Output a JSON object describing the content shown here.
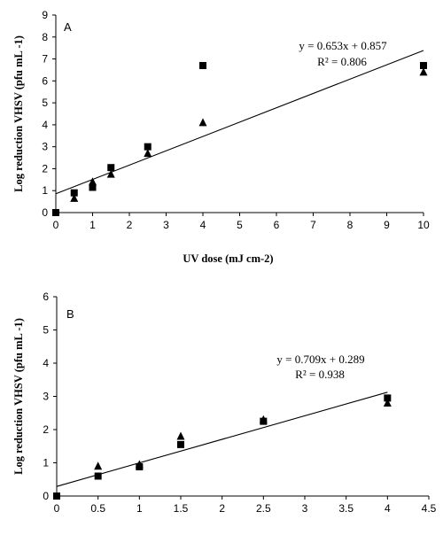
{
  "chart_data": [
    {
      "type": "scatter",
      "panel_label": "A",
      "xlabel": "UV dose  (mJ cm-2)",
      "ylabel": "Log reduction VHSV (pfu mL -1)",
      "xlim": [
        0,
        10
      ],
      "ylim": [
        0,
        9
      ],
      "xticks": [
        "0",
        "1",
        "2",
        "3",
        "4",
        "5",
        "6",
        "7",
        "8",
        "9",
        "10"
      ],
      "yticks": [
        "0",
        "1",
        "2",
        "3",
        "4",
        "5",
        "6",
        "7",
        "8",
        "9"
      ],
      "grid": false,
      "legend": "none",
      "series": [
        {
          "marker": "square",
          "x": [
            0,
            0.5,
            1,
            1.5,
            2.5,
            4,
            10
          ],
          "y": [
            0,
            0.9,
            1.15,
            2.05,
            3.0,
            6.7,
            6.7
          ]
        },
        {
          "marker": "triangle",
          "x": [
            0.5,
            1,
            1.5,
            2.5,
            4,
            10
          ],
          "y": [
            0.65,
            1.4,
            1.75,
            2.7,
            4.1,
            6.4
          ]
        }
      ],
      "trendline": {
        "slope": 0.653,
        "intercept": 0.857,
        "x_range": [
          0,
          10
        ],
        "equation": "y = 0.653x + 0.857",
        "r2": "R² = 0.806"
      }
    },
    {
      "type": "scatter",
      "panel_label": "B",
      "xlabel": "",
      "ylabel": "Log reduction VHSV (pfu mL -1)",
      "xlim": [
        0,
        4.5
      ],
      "ylim": [
        0,
        6
      ],
      "xticks": [
        "0",
        "0.5",
        "1",
        "1.5",
        "2",
        "2.5",
        "3",
        "3.5",
        "4",
        "4.5"
      ],
      "yticks": [
        "0",
        "1",
        "2",
        "3",
        "4",
        "5",
        "6"
      ],
      "grid": false,
      "legend": "none",
      "series": [
        {
          "marker": "square",
          "x": [
            0,
            0.5,
            1,
            1.5,
            2.5,
            4
          ],
          "y": [
            0,
            0.6,
            0.88,
            1.55,
            2.25,
            2.95
          ]
        },
        {
          "marker": "triangle",
          "x": [
            0.5,
            1,
            1.5,
            2.5,
            4
          ],
          "y": [
            0.9,
            0.95,
            1.8,
            2.3,
            2.8
          ]
        }
      ],
      "trendline": {
        "slope": 0.709,
        "intercept": 0.289,
        "x_range": [
          0,
          4
        ],
        "equation": "y = 0.709x + 0.289",
        "r2": "R² = 0.938"
      }
    }
  ]
}
